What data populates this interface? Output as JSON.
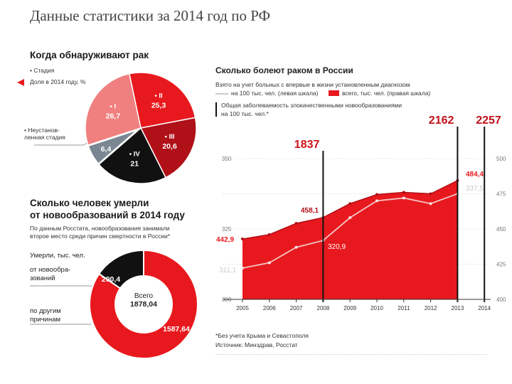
{
  "page": {
    "title": "Данные статистики за 2014 год по РФ"
  },
  "colors": {
    "red": "#e8191e",
    "salmon": "#f08080",
    "dark_red": "#b01018",
    "gray": "#7a8793",
    "black": "#111111"
  },
  "detection": {
    "title": "Когда обнаруживают рак",
    "legend_stage": "• Стадия",
    "legend_share": "Доля в 2014 году, %",
    "unknown_label": "• Неустанов-ленная стадия"
  },
  "deaths": {
    "title_line1": "Сколько человек умерли",
    "title_line2": "от новообразований в 2014 году",
    "note_line1": "По данным Росстата, новообразования занимали",
    "note_line2": "второе место среди причин смертности в России*",
    "legend_title": "Умерли, тыс. чел.",
    "label_neo": "от новообра-зований",
    "label_other": "по другим причинам",
    "total_label": "Всего",
    "total_value": "1878,04"
  },
  "sick": {
    "title": "Сколько болеют раком в России",
    "subtitle": "Взято на учет больных с впервые в жизни установленным диагнозом",
    "legend_left": "на 100 тыс. чел. (левая шкала)",
    "legend_right": "всего, тыс. чел. (правая шкала)",
    "legend_total_line1": "Общая заболеваемость злокачественными новообразованиями",
    "legend_total_line2": "на 100 тыс. чел.*",
    "footnote": "*Без учета Крыма и Севастополя",
    "source": "Источник: Минздрав, Росстат"
  },
  "chart_data": [
    {
      "type": "pie",
      "title": "Когда обнаруживают рак",
      "slices": [
        {
          "label": "• I",
          "value": 26.7,
          "value_label": "26,7",
          "color": "#f08080"
        },
        {
          "label": "• II",
          "value": 25.3,
          "value_label": "25,3",
          "color": "#e8191e"
        },
        {
          "label": "• III",
          "value": 20.6,
          "value_label": "20,6",
          "color": "#b01018"
        },
        {
          "label": "• IV",
          "value": 21,
          "value_label": "21",
          "color": "#111111"
        },
        {
          "label": "",
          "value": 6.4,
          "value_label": "6,4",
          "color": "#7a8793"
        }
      ]
    },
    {
      "type": "pie",
      "title": "Сколько человек умерли от новообразований в 2014 году",
      "slices": [
        {
          "label": "от новообра-зований",
          "value": 290.4,
          "value_label": "290,4",
          "color": "#111111"
        },
        {
          "label": "по другим причинам",
          "value": 1587.64,
          "value_label": "1587,64",
          "color": "#e8191e"
        }
      ]
    },
    {
      "type": "area",
      "title": "Сколько болеют раком в России",
      "x": [
        "2005",
        "2006",
        "2007",
        "2008",
        "2009",
        "2010",
        "2011",
        "2012",
        "2013",
        "2014"
      ],
      "series": [
        {
          "name": "всего, тыс. чел. (правая шкала)",
          "axis": "right",
          "values": [
            442.9,
            446.0,
            454.0,
            458.1,
            468.0,
            474.5,
            476.0,
            475.0,
            484.4,
            null
          ],
          "labels": {
            "0": "442,9",
            "3": "458,1",
            "8": "484,4"
          }
        },
        {
          "name": "на 100 тыс. чел. (левая шкала)",
          "axis": "left",
          "values": [
            311.1,
            313.0,
            318.5,
            320.9,
            329.0,
            335.0,
            336.0,
            334.0,
            337.5,
            null
          ],
          "labels": {
            "0": "311,1",
            "3": "320,9",
            "8": "337,5"
          }
        }
      ],
      "left_axis": {
        "ticks": [
          300,
          325,
          350
        ],
        "ylim": [
          300,
          350
        ]
      },
      "right_axis": {
        "ticks": [
          400,
          425,
          450,
          475,
          500
        ],
        "ylim": [
          400,
          500
        ]
      },
      "markers": [
        {
          "x": "2008",
          "label": "1837"
        },
        {
          "x": "2013",
          "label": "2162"
        },
        {
          "x": "2014",
          "label": "2257"
        }
      ]
    }
  ]
}
